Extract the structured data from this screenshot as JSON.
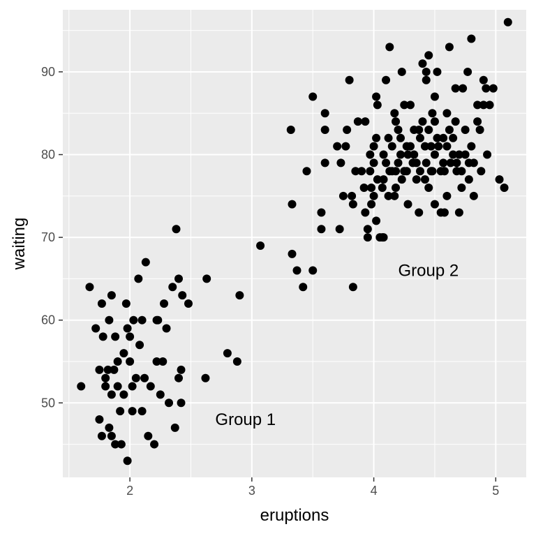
{
  "chart_data": {
    "type": "scatter",
    "xlabel": "eruptions",
    "ylabel": "waiting",
    "xlim": [
      1.45,
      5.25
    ],
    "ylim": [
      41,
      97.5
    ],
    "x_ticks": [
      2,
      3,
      4,
      5
    ],
    "y_ticks": [
      50,
      60,
      70,
      80,
      90
    ],
    "x_tick_labels": [
      "2",
      "3",
      "4",
      "5"
    ],
    "y_tick_labels": [
      "50",
      "60",
      "70",
      "80",
      "90"
    ],
    "x_minor_ticks": [
      1.5,
      2.5,
      3.5,
      4.5
    ],
    "y_minor_ticks": [
      45,
      55,
      65,
      75,
      85,
      95
    ],
    "grid": true,
    "background": "#ebebeb",
    "grid_color": "#ffffff",
    "point_color": "#000000",
    "annotations": [
      {
        "text": "Group 1",
        "x": 2.7,
        "y": 48
      },
      {
        "text": "Group 2",
        "x": 4.2,
        "y": 66
      }
    ],
    "points": [
      [
        1.6,
        52
      ],
      [
        1.67,
        64
      ],
      [
        1.72,
        59
      ],
      [
        1.75,
        54
      ],
      [
        1.75,
        48
      ],
      [
        1.77,
        46
      ],
      [
        1.77,
        62
      ],
      [
        1.78,
        58
      ],
      [
        1.8,
        53
      ],
      [
        1.8,
        52
      ],
      [
        1.82,
        54
      ],
      [
        1.83,
        60
      ],
      [
        1.83,
        47
      ],
      [
        1.85,
        63
      ],
      [
        1.85,
        51
      ],
      [
        1.85,
        46
      ],
      [
        1.87,
        54
      ],
      [
        1.88,
        58
      ],
      [
        1.88,
        45
      ],
      [
        1.9,
        55
      ],
      [
        1.9,
        52
      ],
      [
        1.92,
        49
      ],
      [
        1.93,
        45
      ],
      [
        1.95,
        51
      ],
      [
        1.95,
        56
      ],
      [
        1.97,
        62
      ],
      [
        1.98,
        59
      ],
      [
        1.98,
        43
      ],
      [
        2.0,
        55
      ],
      [
        2.0,
        58
      ],
      [
        2.02,
        52
      ],
      [
        2.02,
        49
      ],
      [
        2.03,
        60
      ],
      [
        2.05,
        53
      ],
      [
        2.07,
        65
      ],
      [
        2.08,
        57
      ],
      [
        2.1,
        60
      ],
      [
        2.1,
        49
      ],
      [
        2.12,
        53
      ],
      [
        2.13,
        67
      ],
      [
        2.15,
        46
      ],
      [
        2.17,
        52
      ],
      [
        2.2,
        45
      ],
      [
        2.22,
        60
      ],
      [
        2.22,
        55
      ],
      [
        2.23,
        60
      ],
      [
        2.25,
        51
      ],
      [
        2.27,
        55
      ],
      [
        2.28,
        62
      ],
      [
        2.3,
        59
      ],
      [
        2.32,
        50
      ],
      [
        2.35,
        64
      ],
      [
        2.37,
        47
      ],
      [
        2.38,
        71
      ],
      [
        2.4,
        53
      ],
      [
        2.4,
        65
      ],
      [
        2.42,
        54
      ],
      [
        2.42,
        50
      ],
      [
        2.43,
        63
      ],
      [
        2.48,
        62
      ],
      [
        2.62,
        53
      ],
      [
        2.63,
        65
      ],
      [
        2.8,
        56
      ],
      [
        2.88,
        55
      ],
      [
        2.9,
        63
      ],
      [
        3.07,
        69
      ],
      [
        3.32,
        83
      ],
      [
        3.33,
        74
      ],
      [
        3.33,
        68
      ],
      [
        3.37,
        66
      ],
      [
        3.42,
        64
      ],
      [
        3.45,
        78
      ],
      [
        3.5,
        87
      ],
      [
        3.5,
        66
      ],
      [
        3.57,
        71
      ],
      [
        3.57,
        73
      ],
      [
        3.6,
        85
      ],
      [
        3.6,
        79
      ],
      [
        3.6,
        83
      ],
      [
        3.7,
        81
      ],
      [
        3.72,
        71
      ],
      [
        3.73,
        79
      ],
      [
        3.75,
        75
      ],
      [
        3.77,
        81
      ],
      [
        3.78,
        83
      ],
      [
        3.8,
        89
      ],
      [
        3.82,
        75
      ],
      [
        3.83,
        74
      ],
      [
        3.83,
        64
      ],
      [
        3.85,
        78
      ],
      [
        3.87,
        84
      ],
      [
        3.9,
        78
      ],
      [
        3.92,
        76
      ],
      [
        3.93,
        84
      ],
      [
        3.95,
        71
      ],
      [
        3.95,
        70
      ],
      [
        3.97,
        80
      ],
      [
        3.98,
        76
      ],
      [
        4.0,
        75
      ],
      [
        4.0,
        79
      ],
      [
        4.0,
        81
      ],
      [
        4.02,
        82
      ],
      [
        4.02,
        87
      ],
      [
        4.03,
        86
      ],
      [
        4.05,
        70
      ],
      [
        4.07,
        70
      ],
      [
        4.08,
        70
      ],
      [
        4.08,
        77
      ],
      [
        4.1,
        79
      ],
      [
        4.1,
        89
      ],
      [
        4.12,
        75
      ],
      [
        4.13,
        93
      ],
      [
        4.15,
        81
      ],
      [
        4.15,
        78
      ],
      [
        4.17,
        85
      ],
      [
        4.17,
        75
      ],
      [
        4.18,
        78
      ],
      [
        4.2,
        83
      ],
      [
        4.2,
        79
      ],
      [
        4.22,
        82
      ],
      [
        4.23,
        90
      ],
      [
        4.25,
        86
      ],
      [
        4.25,
        78
      ],
      [
        4.27,
        78
      ],
      [
        4.28,
        74
      ],
      [
        4.3,
        81
      ],
      [
        4.3,
        86
      ],
      [
        4.32,
        79
      ],
      [
        4.33,
        80
      ],
      [
        4.35,
        77
      ],
      [
        4.37,
        83
      ],
      [
        4.37,
        73
      ],
      [
        4.38,
        78
      ],
      [
        4.4,
        91
      ],
      [
        4.4,
        84
      ],
      [
        4.42,
        81
      ],
      [
        4.43,
        89
      ],
      [
        4.43,
        90
      ],
      [
        4.45,
        92
      ],
      [
        4.45,
        83
      ],
      [
        4.47,
        78
      ],
      [
        4.48,
        85
      ],
      [
        4.5,
        84
      ],
      [
        4.5,
        80
      ],
      [
        4.5,
        74
      ],
      [
        4.5,
        87
      ],
      [
        4.52,
        90
      ],
      [
        4.53,
        81
      ],
      [
        4.55,
        78
      ],
      [
        4.57,
        79
      ],
      [
        4.58,
        73
      ],
      [
        4.6,
        75
      ],
      [
        4.6,
        85
      ],
      [
        4.62,
        93
      ],
      [
        4.63,
        79
      ],
      [
        4.65,
        82
      ],
      [
        4.67,
        84
      ],
      [
        4.67,
        88
      ],
      [
        4.68,
        78
      ],
      [
        4.7,
        80
      ],
      [
        4.7,
        73
      ],
      [
        4.72,
        78
      ],
      [
        4.73,
        88
      ],
      [
        4.75,
        83
      ],
      [
        4.77,
        90
      ],
      [
        4.78,
        79
      ],
      [
        4.8,
        81
      ],
      [
        4.8,
        94
      ],
      [
        4.82,
        75
      ],
      [
        4.85,
        86
      ],
      [
        4.87,
        83
      ],
      [
        4.88,
        78
      ],
      [
        4.9,
        86
      ],
      [
        4.9,
        89
      ],
      [
        4.92,
        88
      ],
      [
        4.93,
        80
      ],
      [
        4.95,
        86
      ],
      [
        4.98,
        88
      ],
      [
        5.03,
        77
      ],
      [
        5.07,
        76
      ],
      [
        5.1,
        96
      ],
      [
        4.52,
        82
      ],
      [
        4.47,
        81
      ],
      [
        4.43,
        79
      ],
      [
        4.38,
        82
      ],
      [
        4.33,
        83
      ],
      [
        4.28,
        80
      ],
      [
        4.23,
        77
      ],
      [
        4.18,
        76
      ],
      [
        4.13,
        78
      ],
      [
        4.08,
        80
      ],
      [
        4.03,
        77
      ],
      [
        3.98,
        74
      ],
      [
        3.93,
        73
      ],
      [
        4.58,
        78
      ],
      [
        4.62,
        83
      ],
      [
        4.68,
        79
      ],
      [
        4.72,
        76
      ],
      [
        4.78,
        77
      ],
      [
        4.82,
        79
      ],
      [
        4.57,
        82
      ],
      [
        4.48,
        78
      ],
      [
        4.42,
        77
      ],
      [
        4.35,
        79
      ],
      [
        4.27,
        81
      ],
      [
        4.22,
        80
      ],
      [
        4.18,
        84
      ],
      [
        4.12,
        82
      ],
      [
        4.07,
        76
      ],
      [
        4.02,
        72
      ],
      [
        3.97,
        78
      ],
      [
        4.65,
        80
      ],
      [
        4.75,
        80
      ],
      [
        4.85,
        84
      ],
      [
        4.45,
        76
      ],
      [
        4.55,
        73
      ],
      [
        4.6,
        81
      ]
    ]
  }
}
